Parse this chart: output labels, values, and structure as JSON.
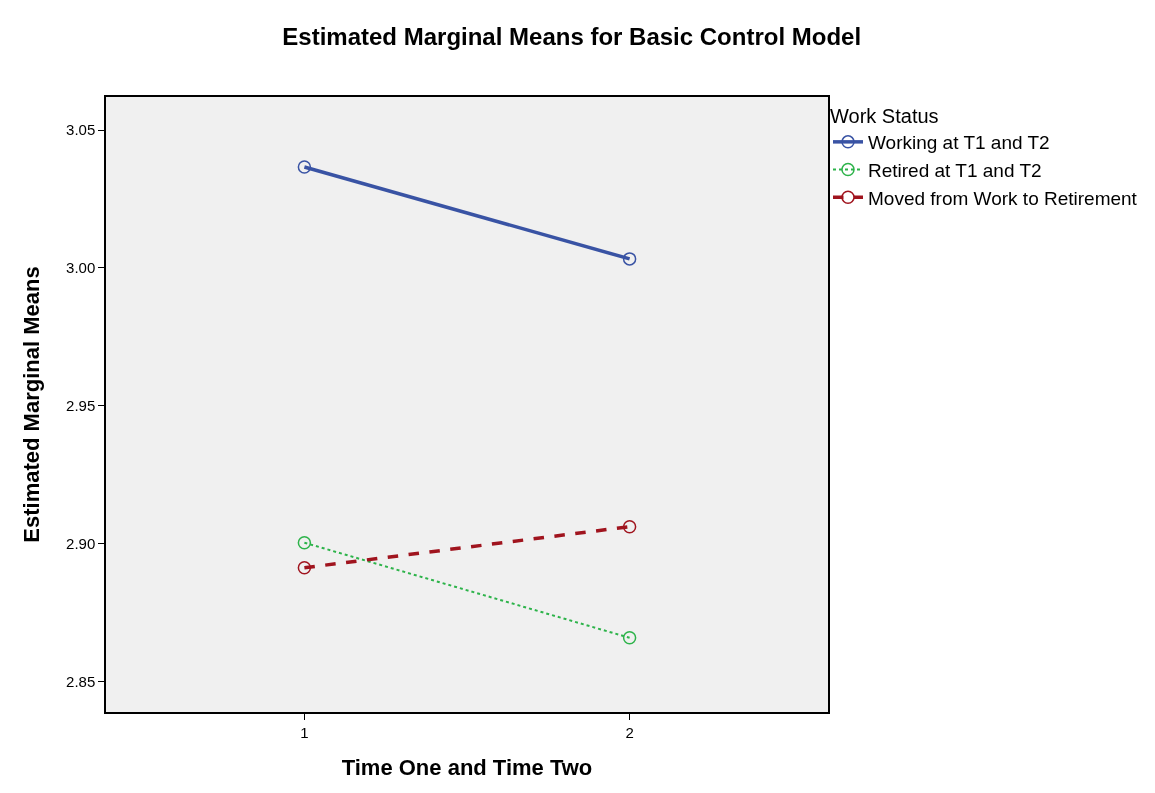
{
  "chart_data": {
    "type": "line",
    "title": "Estimated Marginal Means for Basic Control Model",
    "xlabel": "Time One and Time Two",
    "ylabel": "Estimated Marginal Means",
    "legend_title": "Work Status",
    "x": [
      1,
      2
    ],
    "series": [
      {
        "name": "Working at T1 and T2",
        "color": "#3953a4",
        "values": [
          3.0366,
          3.0033
        ],
        "line_style": "solid"
      },
      {
        "name": "Retired at T1 and T2",
        "color": "#2db34a",
        "values": [
          2.9004,
          2.8659
        ],
        "line_style": "dotted"
      },
      {
        "name": "Moved from Work to Retirement",
        "color": "#a0141e",
        "values": [
          2.8913,
          2.9062
        ],
        "line_style": "dashed"
      }
    ],
    "xlim": [
      0.39,
      2.61
    ],
    "xticks": [
      1,
      2
    ],
    "ylim": [
      2.839,
      3.062
    ],
    "yticks": [
      2.85,
      {
        "value": 2.9,
        "label": "2.90"
      },
      2.95,
      {
        "value": 3,
        "label": "3.00"
      },
      3.05
    ],
    "grid": false,
    "legend": "top right",
    "marker": "circle"
  }
}
